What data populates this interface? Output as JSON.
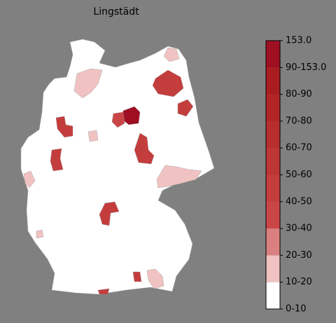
{
  "title": "Lingstädt",
  "colorbar": {
    "ticks": [
      "0-10",
      "10-20",
      "20-30",
      "30-40",
      "40-50",
      "50-60",
      "60-70",
      "70-80",
      "80-90",
      "90-153.0",
      "153.0"
    ],
    "colors": [
      "#ffffff",
      "#f0c2c2",
      "#da8080",
      "#ca4646",
      "#c43d3d",
      "#be3535",
      "#b82d2d",
      "#b12525",
      "#a91c1f",
      "#9e0f22"
    ]
  }
}
